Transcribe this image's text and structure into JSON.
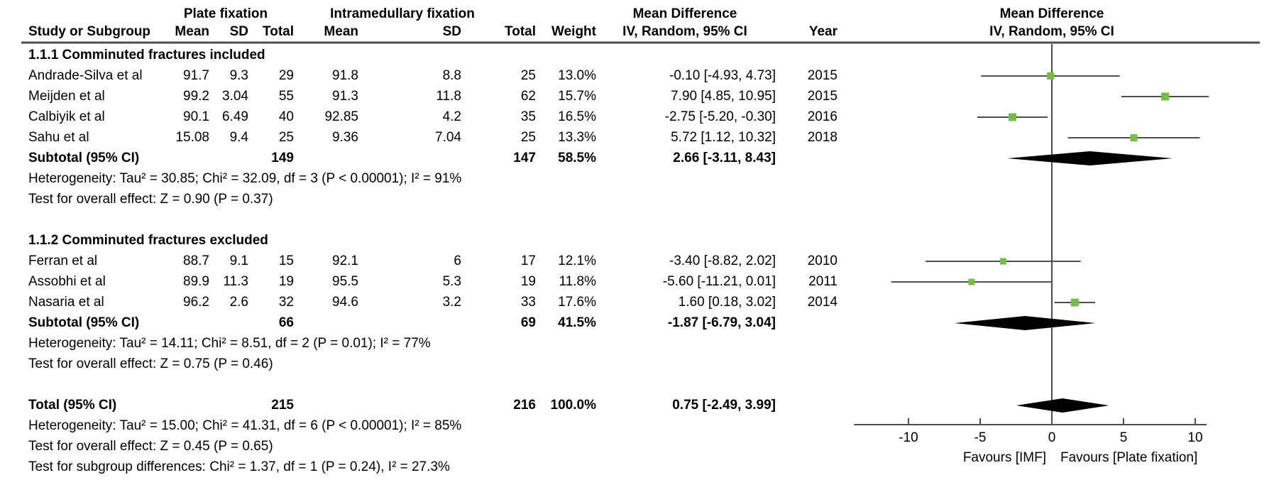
{
  "header": {
    "plate_group": "Plate fixation",
    "imf_group": "Intramedullary fixation",
    "md_left": "Mean Difference",
    "md_right": "Mean Difference",
    "study": "Study or Subgroup",
    "mean": "Mean",
    "sd": "SD",
    "total": "Total",
    "weight": "Weight",
    "ci_method": "IV, Random, 95% CI",
    "ci_method_right": "IV, Random, 95% CI",
    "year": "Year"
  },
  "colors": {
    "marker_green": "#72bf44",
    "diamond_black": "#000000",
    "line_gray": "#4d4d4d",
    "text_black": "#000000"
  },
  "chart_data": {
    "type": "forest",
    "effect_measure": "Mean Difference",
    "model": "IV, Random, 95% CI",
    "axis": {
      "ticks": [
        -10,
        -5,
        0,
        5,
        10
      ],
      "min": -13.8,
      "max": 10.8,
      "favours_left": "Favours [IMF]",
      "favours_right": "Favours [Plate fixation]"
    },
    "subgroups": [
      {
        "label": "1.1.1 Comminuted fractures included",
        "studies": [
          {
            "name": "Andrade-Silva et al",
            "mean1": "91.7",
            "sd1": "9.3",
            "n1": "29",
            "mean2": "91.8",
            "sd2": "8.8",
            "n2": "25",
            "weight": "13.0%",
            "w": 13.0,
            "est": -0.1,
            "lo": -4.93,
            "hi": 4.73,
            "ci_text": "-0.10 [-4.93, 4.73]",
            "year": "2015"
          },
          {
            "name": "Meijden et al",
            "mean1": "99.2",
            "sd1": "3.04",
            "n1": "55",
            "mean2": "91.3",
            "sd2": "11.8",
            "n2": "62",
            "weight": "15.7%",
            "w": 15.7,
            "est": 7.9,
            "lo": 4.85,
            "hi": 10.95,
            "ci_text": "7.90 [4.85, 10.95]",
            "year": "2015"
          },
          {
            "name": "Calbiyik et al",
            "mean1": "90.1",
            "sd1": "6.49",
            "n1": "40",
            "mean2": "92.85",
            "sd2": "4.2",
            "n2": "35",
            "weight": "16.5%",
            "w": 16.5,
            "est": -2.75,
            "lo": -5.2,
            "hi": -0.3,
            "ci_text": "-2.75 [-5.20, -0.30]",
            "year": "2016"
          },
          {
            "name": "Sahu et al",
            "mean1": "15.08",
            "sd1": "9.4",
            "n1": "25",
            "mean2": "9.36",
            "sd2": "7.04",
            "n2": "25",
            "weight": "13.3%",
            "w": 13.3,
            "est": 5.72,
            "lo": 1.12,
            "hi": 10.32,
            "ci_text": "5.72 [1.12, 10.32]",
            "year": "2018"
          }
        ],
        "subtotal": {
          "label": "Subtotal (95% CI)",
          "n1": "149",
          "n2": "147",
          "weight": "58.5%",
          "est": 2.66,
          "lo": -3.11,
          "hi": 8.43,
          "ci_text": "2.66 [-3.11, 8.43]"
        },
        "heterogeneity": "Heterogeneity: Tau² = 30.85; Chi² = 32.09, df = 3 (P < 0.00001); I² = 91%",
        "overall_effect": "Test for overall effect: Z = 0.90 (P = 0.37)"
      },
      {
        "label": "1.1.2 Comminuted fractures excluded",
        "studies": [
          {
            "name": "Ferran et al",
            "mean1": "88.7",
            "sd1": "9.1",
            "n1": "15",
            "mean2": "92.1",
            "sd2": "6",
            "n2": "17",
            "weight": "12.1%",
            "w": 12.1,
            "est": -3.4,
            "lo": -8.82,
            "hi": 2.02,
            "ci_text": "-3.40 [-8.82, 2.02]",
            "year": "2010"
          },
          {
            "name": "Assobhi et al",
            "mean1": "89.9",
            "sd1": "11.3",
            "n1": "19",
            "mean2": "95.5",
            "sd2": "5.3",
            "n2": "19",
            "weight": "11.8%",
            "w": 11.8,
            "est": -5.6,
            "lo": -11.21,
            "hi": 0.01,
            "ci_text": "-5.60 [-11.21, 0.01]",
            "year": "2011"
          },
          {
            "name": "Nasaria et al",
            "mean1": "96.2",
            "sd1": "2.6",
            "n1": "32",
            "mean2": "94.6",
            "sd2": "3.2",
            "n2": "33",
            "weight": "17.6%",
            "w": 17.6,
            "est": 1.6,
            "lo": 0.18,
            "hi": 3.02,
            "ci_text": "1.60 [0.18, 3.02]",
            "year": "2014"
          }
        ],
        "subtotal": {
          "label": "Subtotal (95% CI)",
          "n1": "66",
          "n2": "69",
          "weight": "41.5%",
          "est": -1.87,
          "lo": -6.79,
          "hi": 3.04,
          "ci_text": "-1.87 [-6.79, 3.04]"
        },
        "heterogeneity": "Heterogeneity: Tau² = 14.11; Chi² = 8.51, df = 2 (P = 0.01); I² = 77%",
        "overall_effect": "Test for overall effect: Z = 0.75 (P = 0.46)"
      }
    ],
    "total": {
      "label": "Total (95% CI)",
      "n1": "215",
      "n2": "216",
      "weight": "100.0%",
      "est": 0.75,
      "lo": -2.49,
      "hi": 3.99,
      "ci_text": "0.75 [-2.49, 3.99]"
    },
    "total_heterogeneity": "Heterogeneity: Tau² = 15.00; Chi² = 41.31, df = 6 (P < 0.00001); I² = 85%",
    "total_overall_effect": "Test for overall effect: Z = 0.45 (P = 0.65)",
    "subgroup_differences": "Test for subgroup differences: Chi² = 1.37, df = 1 (P = 0.24), I² = 27.3%"
  }
}
